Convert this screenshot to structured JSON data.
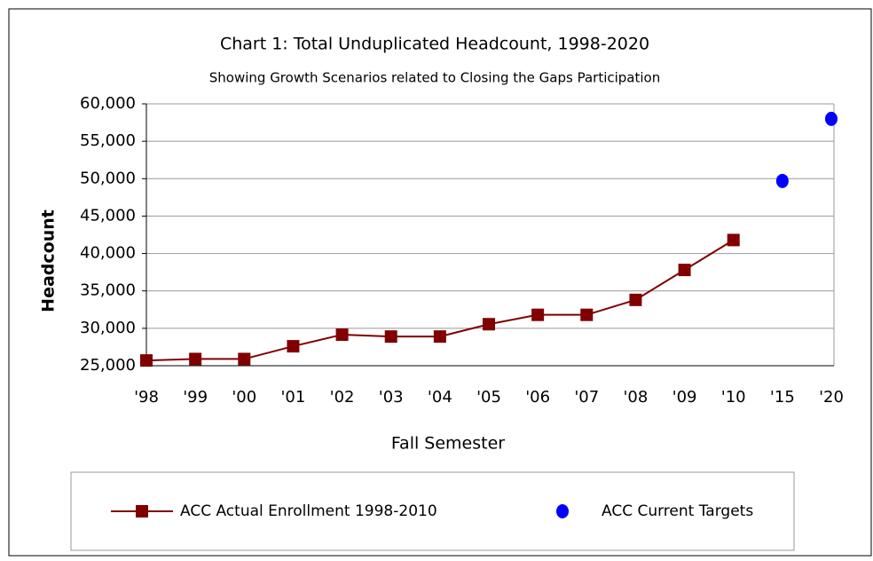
{
  "chart_data": {
    "type": "line",
    "title": "Chart 1: Total Unduplicated Headcount, 1998-2020",
    "subtitle": "Showing Growth Scenarios related to Closing the Gaps Participation",
    "x_label": "Fall Semester",
    "y_label": "Headcount",
    "categories": [
      "'98",
      "'99",
      "'00",
      "'01",
      "'02",
      "'03",
      "'04",
      "'05",
      "'06",
      "'07",
      "'08",
      "'09",
      "'10",
      "'15",
      "'20"
    ],
    "series": [
      {
        "name": "ACC Actual Enrollment 1998-2010",
        "color": "#800000",
        "marker": "square",
        "values": [
          25700,
          25900,
          25900,
          27600,
          29150,
          28900,
          28900,
          30550,
          31800,
          31800,
          33800,
          37800,
          41800,
          null,
          null
        ]
      },
      {
        "name": "ACC Current Targets",
        "color": "#0000ff",
        "marker": "circle",
        "values": [
          null,
          null,
          null,
          null,
          null,
          null,
          null,
          null,
          null,
          null,
          null,
          null,
          null,
          49700,
          58000
        ]
      }
    ],
    "ylim": [
      25000,
      60000
    ],
    "yticks": [
      {
        "value": 25000,
        "label": "25,000"
      },
      {
        "value": 30000,
        "label": "30,000"
      },
      {
        "value": 35000,
        "label": "35,000"
      },
      {
        "value": 40000,
        "label": "40,000"
      },
      {
        "value": 45000,
        "label": "45,000"
      },
      {
        "value": 50000,
        "label": "50,000"
      },
      {
        "value": 55000,
        "label": "55,000"
      },
      {
        "value": 60000,
        "label": "60,000"
      }
    ],
    "grid": true,
    "legend": "bottom"
  }
}
